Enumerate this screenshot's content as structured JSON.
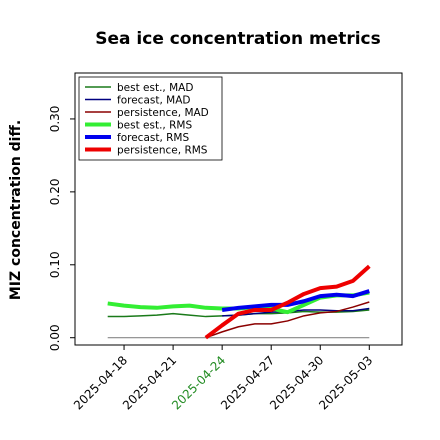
{
  "chart_data": {
    "type": "line",
    "title": "Sea ice concentration metrics",
    "y_label": "MIZ concentration diff.",
    "x": [
      "2025-04-17",
      "2025-04-18",
      "2025-04-19",
      "2025-04-20",
      "2025-04-21",
      "2025-04-22",
      "2025-04-23",
      "2025-04-24",
      "2025-04-25",
      "2025-04-26",
      "2025-04-27",
      "2025-04-28",
      "2025-04-29",
      "2025-04-30",
      "2025-05-01",
      "2025-05-02",
      "2025-05-03"
    ],
    "series": [
      {
        "name": "best est., MAD",
        "color": "#1a7a1a",
        "width": 1.5,
        "values": [
          0.029,
          0.029,
          0.03,
          0.031,
          0.033,
          0.031,
          0.029,
          0.03,
          0.031,
          0.033,
          0.033,
          0.034,
          0.036,
          0.035,
          0.035,
          0.036,
          0.038
        ]
      },
      {
        "name": "forecast,  MAD",
        "color": "#000080",
        "width": 1.5,
        "values": [
          null,
          null,
          null,
          null,
          null,
          null,
          null,
          0.03,
          0.031,
          0.033,
          0.035,
          0.036,
          0.038,
          0.038,
          0.037,
          0.037,
          0.04
        ]
      },
      {
        "name": "persistence, MAD",
        "color": "#8b0000",
        "width": 1.5,
        "values": [
          null,
          null,
          null,
          null,
          null,
          null,
          0.0,
          0.008,
          0.015,
          0.019,
          0.019,
          0.023,
          0.03,
          0.034,
          0.036,
          0.042,
          0.049
        ]
      },
      {
        "name": "best est., RMS",
        "color": "#33ee33",
        "width": 4,
        "values": [
          0.047,
          0.044,
          0.042,
          0.041,
          0.043,
          0.044,
          0.041,
          0.04,
          0.04,
          0.042,
          0.04,
          0.035,
          0.045,
          0.055,
          0.058,
          0.058,
          0.062
        ]
      },
      {
        "name": "forecast,  RMS",
        "color": "#0000ee",
        "width": 4,
        "values": [
          null,
          null,
          null,
          null,
          null,
          null,
          null,
          0.038,
          0.041,
          0.043,
          0.045,
          0.045,
          0.05,
          0.057,
          0.059,
          0.057,
          0.064
        ]
      },
      {
        "name": "persistence, RMS",
        "color": "#ee0000",
        "width": 4,
        "values": [
          null,
          null,
          null,
          null,
          null,
          null,
          0.0,
          0.017,
          0.033,
          0.038,
          0.038,
          0.048,
          0.06,
          0.068,
          0.07,
          0.078,
          0.098
        ]
      }
    ],
    "hline": 0,
    "ylim": [
      -0.01,
      0.363
    ],
    "yticks": [
      {
        "value": 0,
        "label": "0.00"
      },
      {
        "value": 0.1,
        "label": "0.10"
      },
      {
        "value": 0.2,
        "label": "0.20"
      },
      {
        "value": 0.3,
        "label": "0.30"
      }
    ],
    "xlim": [
      "2025-04-15",
      "2025-05-05"
    ],
    "xticks": [
      "2025-04-18",
      "2025-04-21",
      "2025-04-24",
      "2025-04-27",
      "2025-04-30",
      "2025-05-03"
    ],
    "xtick_label_colors": [
      "#000000",
      "#000000",
      "#228b22",
      "#000000",
      "#000000",
      "#000000"
    ],
    "legend": "upper left"
  }
}
